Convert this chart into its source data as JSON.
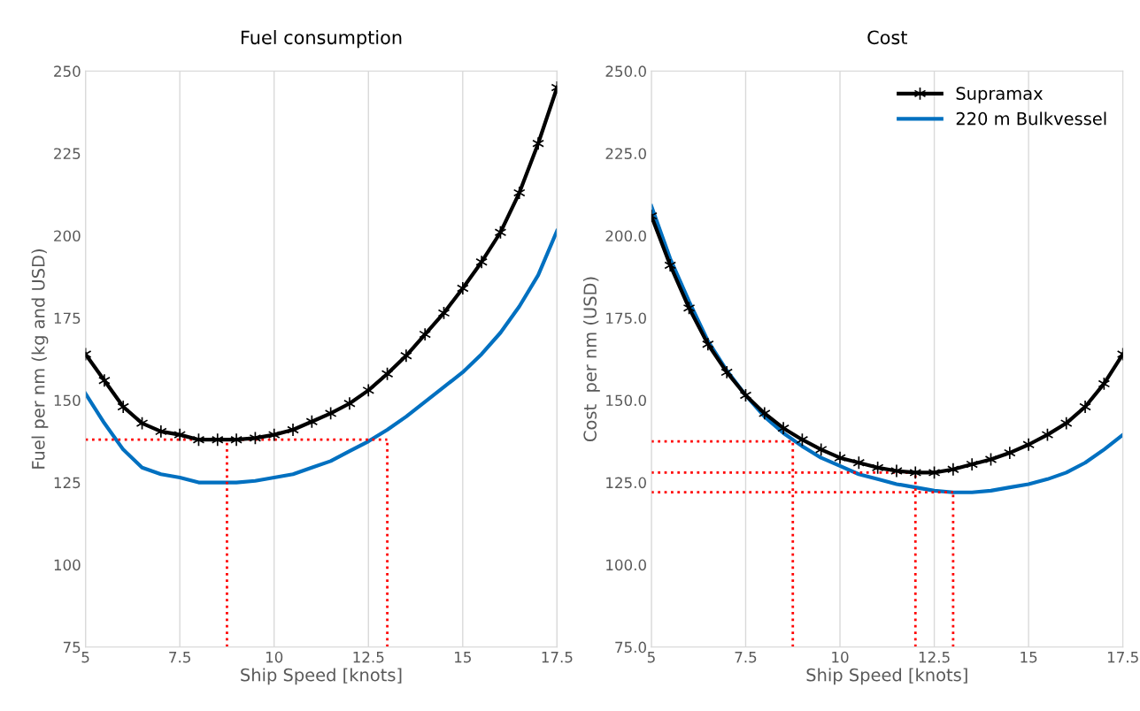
{
  "chart_data": [
    {
      "type": "line",
      "title": "Fuel consumption",
      "xlabel": "Ship Speed [knots]",
      "ylabel": "Fuel per nm (kg and USD)",
      "xlim": [
        5,
        17.5
      ],
      "ylim": [
        75,
        250
      ],
      "xticks": [
        5,
        7.5,
        10,
        12.5,
        15,
        17.5
      ],
      "yticks": [
        75,
        100,
        125,
        150,
        175,
        200,
        225,
        250
      ],
      "grid": "x",
      "legend": false,
      "x": [
        5,
        5.5,
        6,
        6.5,
        7,
        7.5,
        8,
        8.5,
        9,
        9.5,
        10,
        10.5,
        11,
        11.5,
        12,
        12.5,
        13,
        13.5,
        14,
        14.5,
        15,
        15.5,
        16,
        16.5,
        17,
        17.5
      ],
      "series": [
        {
          "color": "#000000",
          "marker": "cross",
          "values": [
            164,
            156,
            148,
            143,
            140.5,
            139.5,
            138,
            138,
            138,
            138.5,
            139.5,
            141,
            143.5,
            146,
            149,
            153,
            158,
            163.5,
            170,
            176.5,
            184,
            192,
            201,
            213,
            228,
            245
          ]
        },
        {
          "color": "#0070c0",
          "marker": "none",
          "values": [
            152,
            143,
            135,
            129.5,
            127.5,
            126.5,
            125,
            125,
            125,
            125.5,
            126.5,
            127.5,
            129.5,
            131.5,
            134.5,
            137.5,
            141,
            145,
            149.5,
            154,
            158.5,
            164,
            170.5,
            178.5,
            188,
            201.5
          ]
        },
        {
          "color": "#ff0000",
          "marker": "none",
          "line_style": "dotted",
          "x": [
            5,
            13
          ],
          "values": [
            138,
            138
          ]
        },
        {
          "color": "#ff0000",
          "marker": "none",
          "line_style": "dotted",
          "x": [
            8.75,
            8.75
          ],
          "values": [
            75,
            138
          ]
        },
        {
          "color": "#ff0000",
          "marker": "none",
          "line_style": "dotted",
          "x": [
            13,
            13
          ],
          "values": [
            75,
            138
          ]
        }
      ]
    },
    {
      "type": "line",
      "title": "Cost",
      "xlabel": "Ship Speed [knots]",
      "ylabel": "Cost  per nm (USD)",
      "xlim": [
        5,
        17.5
      ],
      "ylim": [
        75,
        250
      ],
      "xticks": [
        5,
        7.5,
        10,
        12.5,
        15,
        17.5
      ],
      "yticks": [
        {
          "value": 75,
          "label": "75.0"
        },
        {
          "value": 100,
          "label": "100.0"
        },
        {
          "value": 125,
          "label": "125.0"
        },
        {
          "value": 150,
          "label": "150.0"
        },
        {
          "value": 175,
          "label": "175.0"
        },
        {
          "value": 200,
          "label": "200.0"
        },
        {
          "value": 225,
          "label": "225.0"
        },
        {
          "value": 250,
          "label": "250.0"
        }
      ],
      "grid": "x",
      "legend": "top right",
      "x": [
        5,
        5.5,
        6,
        6.5,
        7,
        7.5,
        8,
        8.5,
        9,
        9.5,
        10,
        10.5,
        11,
        11.5,
        12,
        12.5,
        13,
        13.5,
        14,
        14.5,
        15,
        15.5,
        16,
        16.5,
        17,
        17.5
      ],
      "series": [
        {
          "name": "Supramax",
          "color": "#000000",
          "marker": "cross",
          "values": [
            206,
            191,
            178,
            167,
            158.5,
            151.5,
            146,
            141.5,
            138,
            135,
            132.5,
            131,
            129.5,
            128.5,
            128,
            128,
            129,
            130.5,
            132,
            134,
            136.5,
            139.5,
            143,
            148,
            155,
            164
          ]
        },
        {
          "name": "220 m Bulkvessel",
          "color": "#0070c0",
          "marker": "none",
          "values": [
            209,
            193,
            180,
            168,
            159,
            151.5,
            145,
            140,
            136,
            132.5,
            130,
            127.5,
            126,
            124.5,
            123.5,
            122.5,
            122,
            122,
            122.5,
            123.5,
            124.5,
            126,
            128,
            131,
            135,
            139.5
          ]
        },
        {
          "color": "#ff0000",
          "marker": "none",
          "line_style": "dotted",
          "x": [
            5,
            8.75
          ],
          "values": [
            137.5,
            137.5
          ]
        },
        {
          "color": "#ff0000",
          "marker": "none",
          "line_style": "dotted",
          "x": [
            8.75,
            8.75
          ],
          "values": [
            75,
            137.5
          ]
        },
        {
          "color": "#ff0000",
          "marker": "none",
          "line_style": "dotted",
          "x": [
            5,
            12
          ],
          "values": [
            128,
            128
          ]
        },
        {
          "color": "#ff0000",
          "marker": "none",
          "line_style": "dotted",
          "x": [
            12,
            12
          ],
          "values": [
            75,
            128
          ]
        },
        {
          "color": "#ff0000",
          "marker": "none",
          "line_style": "dotted",
          "x": [
            5,
            13
          ],
          "values": [
            122,
            122
          ]
        },
        {
          "color": "#ff0000",
          "marker": "none",
          "line_style": "dotted",
          "x": [
            13,
            13
          ],
          "values": [
            75,
            122
          ]
        }
      ]
    }
  ]
}
